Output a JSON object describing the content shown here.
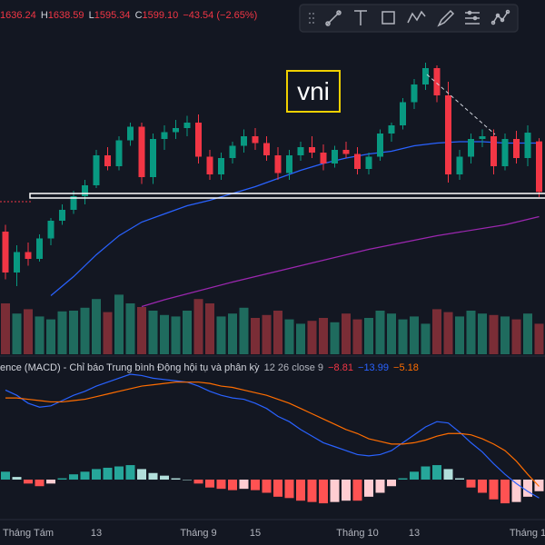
{
  "header": {
    "open": "1636.24",
    "h_label": "H",
    "high": "1638.59",
    "l_label": "L",
    "low": "1595.34",
    "c_label": "C",
    "close": "1599.10",
    "change": "−43.54 (−2.65%)"
  },
  "symbol_label": "vni",
  "macd_legend": {
    "title": "ence (MACD) - Chỉ báo Trung bình Động hội tụ và phân kỳ",
    "params": "12 26 close 9",
    "hist": "−8.81",
    "macd": "−13.99",
    "signal": "−5.18"
  },
  "chart_data": {
    "type": "candlestick",
    "categories": [
      null,
      null,
      "Tháng Tám",
      null,
      null,
      null,
      null,
      null,
      "13",
      null,
      null,
      null,
      null,
      null,
      null,
      null,
      null,
      "Tháng 9",
      null,
      null,
      null,
      null,
      "15",
      null,
      null,
      null,
      null,
      null,
      null,
      null,
      null,
      "Tháng 10",
      null,
      null,
      null,
      null,
      "13",
      null,
      null,
      null,
      null,
      null,
      null,
      null,
      null,
      null,
      "Tháng 1",
      null
    ],
    "open": [
      1570,
      1540,
      1555,
      1550,
      1565,
      1578,
      1586,
      1596,
      1604,
      1626,
      1618,
      1637,
      1647,
      1610,
      1638,
      1643,
      1646,
      1650,
      1625,
      1612,
      1624,
      1633,
      1640,
      1635,
      1626,
      1613,
      1626,
      1632,
      1628,
      1620,
      1630,
      1627,
      1616,
      1625,
      1642,
      1648,
      1665,
      1678,
      1690,
      1670,
      1612,
      1625,
      1638,
      1640,
      1618,
      1638,
      1624,
      1636.24
    ],
    "high": [
      1575,
      1560,
      1562,
      1568,
      1580,
      1590,
      1600,
      1608,
      1630,
      1632,
      1640,
      1650,
      1650,
      1642,
      1648,
      1652,
      1655,
      1656,
      1630,
      1628,
      1636,
      1645,
      1646,
      1640,
      1632,
      1630,
      1636,
      1640,
      1634,
      1633,
      1636,
      1632,
      1628,
      1645,
      1650,
      1668,
      1682,
      1694,
      1692,
      1680,
      1630,
      1642,
      1645,
      1645,
      1642,
      1644,
      1648,
      1638.59
    ],
    "low": [
      1535,
      1530,
      1545,
      1548,
      1560,
      1575,
      1583,
      1590,
      1602,
      1615,
      1615,
      1633,
      1605,
      1605,
      1630,
      1638,
      1640,
      1620,
      1608,
      1608,
      1620,
      1628,
      1630,
      1622,
      1608,
      1608,
      1622,
      1624,
      1615,
      1617,
      1624,
      1612,
      1612,
      1622,
      1636,
      1645,
      1660,
      1674,
      1665,
      1606,
      1608,
      1620,
      1632,
      1612,
      1615,
      1620,
      1618,
      1595.34
    ],
    "close": [
      1540,
      1555,
      1550,
      1565,
      1578,
      1586,
      1596,
      1604,
      1626,
      1618,
      1637,
      1647,
      1610,
      1638,
      1643,
      1646,
      1650,
      1625,
      1612,
      1624,
      1633,
      1640,
      1635,
      1626,
      1613,
      1626,
      1632,
      1628,
      1620,
      1630,
      1627,
      1616,
      1625,
      1642,
      1648,
      1665,
      1678,
      1690,
      1670,
      1612,
      1625,
      1638,
      1640,
      1618,
      1638,
      1624,
      1642.64,
      1599.1
    ],
    "volume": [
      700,
      560,
      620,
      520,
      480,
      590,
      600,
      640,
      760,
      580,
      820,
      700,
      650,
      600,
      540,
      520,
      600,
      760,
      700,
      520,
      560,
      640,
      500,
      540,
      600,
      480,
      420,
      460,
      500,
      440,
      560,
      480,
      500,
      600,
      560,
      480,
      520,
      420,
      620,
      580,
      520,
      600,
      560,
      540,
      520,
      480,
      560,
      420
    ],
    "moving_averages": [
      {
        "color": "#2962ff",
        "x": [
          4,
          6,
          8,
          10,
          12,
          14,
          16,
          18,
          20,
          22,
          24,
          26,
          28,
          30,
          32,
          34,
          36,
          38,
          40,
          42,
          44,
          46,
          47
        ],
        "values": [
          1523,
          1537,
          1553,
          1567,
          1577,
          1583,
          1589,
          1593,
          1598,
          1603,
          1609,
          1615,
          1620,
          1624,
          1627,
          1629,
          1633,
          1635,
          1636,
          1636,
          1635,
          1635,
          1635
        ]
      },
      {
        "color": "#9c27b0",
        "x": [
          12,
          14,
          20,
          26,
          32,
          38,
          44,
          47
        ],
        "values": [
          1515,
          1520,
          1533,
          1545,
          1557,
          1567,
          1575,
          1581
        ]
      }
    ],
    "macd": {
      "macd_color": "#2962ff",
      "signal_color": "#ff6d00",
      "macd": [
        68,
        64,
        58,
        55,
        56,
        60,
        64,
        67,
        71,
        74,
        77,
        80,
        79,
        77,
        76,
        75,
        74,
        71,
        67,
        64,
        62,
        61,
        58,
        54,
        48,
        44,
        38,
        33,
        28,
        25,
        22,
        19,
        18,
        19,
        22,
        28,
        34,
        40,
        44,
        43,
        36,
        28,
        21,
        12,
        4,
        -3,
        -9,
        -13.99
      ],
      "signal": [
        62,
        62,
        61,
        60,
        59,
        59,
        60,
        61,
        63,
        65,
        67,
        69,
        71,
        72,
        73,
        74,
        74,
        74,
        73,
        71,
        70,
        68,
        66,
        64,
        61,
        58,
        54,
        50,
        46,
        42,
        38,
        35,
        31,
        29,
        27,
        27,
        28,
        30,
        33,
        35,
        35,
        34,
        31,
        27,
        22,
        14,
        4,
        -5.18
      ],
      "histogram": [
        6,
        2,
        -3,
        -5,
        -3,
        1,
        4,
        6,
        8,
        9,
        10,
        11,
        8,
        5,
        3,
        1,
        0,
        -3,
        -6,
        -7,
        -8,
        -7,
        -8,
        -10,
        -13,
        -14,
        -16,
        -17,
        -18,
        -17,
        -16,
        -16,
        -13,
        -10,
        -5,
        1,
        6,
        10,
        11,
        8,
        1,
        -6,
        -10,
        -15,
        -18,
        -17,
        -13,
        -8.81
      ]
    }
  }
}
